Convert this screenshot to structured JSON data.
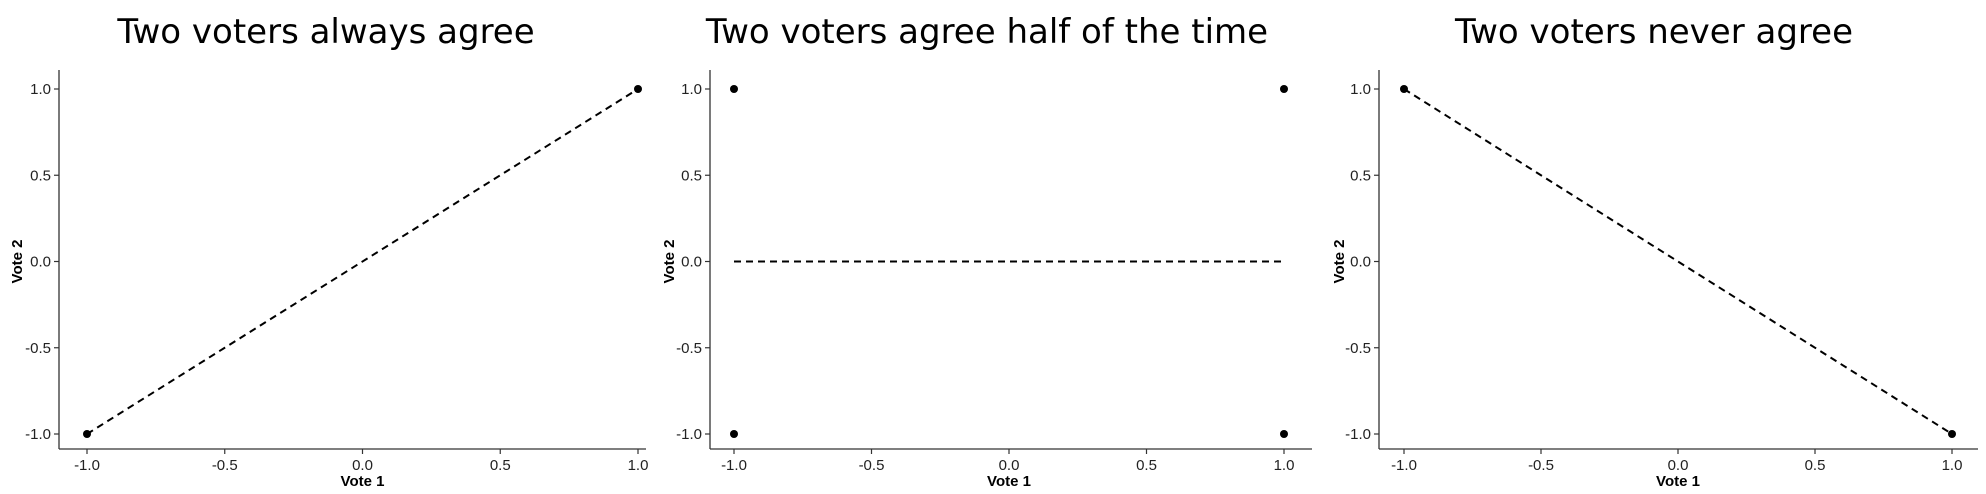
{
  "chart_data": [
    {
      "type": "scatter",
      "title": "Two voters always agree",
      "xlabel": "Vote 1",
      "ylabel": "Vote 2",
      "xlim": [
        -1.0,
        1.0
      ],
      "ylim": [
        -1.0,
        1.0
      ],
      "x_ticks": [
        "-1.0",
        "-0.5",
        "0.0",
        "0.5",
        "1.0"
      ],
      "y_ticks": [
        "-1.0",
        "-0.5",
        "0.0",
        "0.5",
        "1.0"
      ],
      "grid": false,
      "points": [
        {
          "x": -1.0,
          "y": -1.0
        },
        {
          "x": 1.0,
          "y": 1.0
        }
      ],
      "fit_line": {
        "style": "dashed",
        "from": {
          "x": -1.0,
          "y": -1.0
        },
        "to": {
          "x": 1.0,
          "y": 1.0
        }
      }
    },
    {
      "type": "scatter",
      "title": "Two voters agree half of the time",
      "xlabel": "Vote 1",
      "ylabel": "Vote 2",
      "xlim": [
        -1.0,
        1.0
      ],
      "ylim": [
        -1.0,
        1.0
      ],
      "x_ticks": [
        "-1.0",
        "-0.5",
        "0.0",
        "0.5",
        "1.0"
      ],
      "y_ticks": [
        "-1.0",
        "-0.5",
        "0.0",
        "0.5",
        "1.0"
      ],
      "grid": false,
      "points": [
        {
          "x": -1.0,
          "y": 1.0
        },
        {
          "x": -1.0,
          "y": -1.0
        },
        {
          "x": 1.0,
          "y": 1.0
        },
        {
          "x": 1.0,
          "y": -1.0
        }
      ],
      "fit_line": {
        "style": "dashed",
        "from": {
          "x": -1.0,
          "y": 0.0
        },
        "to": {
          "x": 1.0,
          "y": 0.0
        }
      }
    },
    {
      "type": "scatter",
      "title": "Two voters never agree",
      "xlabel": "Vote 1",
      "ylabel": "Vote 2",
      "xlim": [
        -1.0,
        1.0
      ],
      "ylim": [
        -1.0,
        1.0
      ],
      "x_ticks": [
        "-1.0",
        "-0.5",
        "0.0",
        "0.5",
        "1.0"
      ],
      "y_ticks": [
        "-1.0",
        "-0.5",
        "0.0",
        "0.5",
        "1.0"
      ],
      "grid": false,
      "points": [
        {
          "x": -1.0,
          "y": 1.0
        },
        {
          "x": 1.0,
          "y": -1.0
        }
      ],
      "fit_line": {
        "style": "dashed",
        "from": {
          "x": -1.0,
          "y": 1.0
        },
        "to": {
          "x": 1.0,
          "y": -1.0
        }
      }
    }
  ]
}
